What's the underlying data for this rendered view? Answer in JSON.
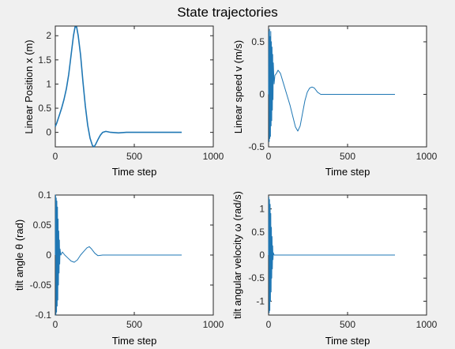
{
  "figure": {
    "title": "State trajectories",
    "background": "#f0f0f0",
    "line_color": "#1f77b4"
  },
  "chart_data": [
    {
      "type": "line",
      "title": "",
      "xlabel": "Time step",
      "ylabel": "Linear Position x (m)",
      "xlim": [
        0,
        1000
      ],
      "ylim": [
        -0.3,
        2.2
      ],
      "xticks": [
        0,
        500,
        1000
      ],
      "xtick_labels": [
        "0",
        "500",
        "1000"
      ],
      "yticks": [
        0,
        0.5,
        1,
        1.5,
        2
      ],
      "ytick_labels": [
        "0",
        "0.5",
        "1",
        "1.5",
        "2"
      ],
      "grid": false,
      "line_width": 1.6,
      "series": [
        {
          "points": [
            [
              0,
              0.12
            ],
            [
              10,
              0.2
            ],
            [
              25,
              0.35
            ],
            [
              40,
              0.5
            ],
            [
              55,
              0.68
            ],
            [
              70,
              0.9
            ],
            [
              85,
              1.2
            ],
            [
              100,
              1.6
            ],
            [
              115,
              2.0
            ],
            [
              125,
              2.18
            ],
            [
              135,
              2.18
            ],
            [
              145,
              2.0
            ],
            [
              160,
              1.6
            ],
            [
              175,
              1.05
            ],
            [
              190,
              0.55
            ],
            [
              205,
              0.15
            ],
            [
              220,
              -0.12
            ],
            [
              235,
              -0.27
            ],
            [
              245,
              -0.3
            ],
            [
              255,
              -0.25
            ],
            [
              270,
              -0.15
            ],
            [
              285,
              -0.06
            ],
            [
              300,
              0.0
            ],
            [
              320,
              0.02
            ],
            [
              350,
              0.0
            ],
            [
              400,
              -0.01
            ],
            [
              450,
              0.0
            ],
            [
              500,
              0.0
            ],
            [
              600,
              0.0
            ],
            [
              700,
              0.0
            ],
            [
              800,
              0.0
            ]
          ]
        }
      ]
    },
    {
      "type": "line",
      "title": "",
      "xlabel": "Time step",
      "ylabel": "Linear speed v (m/s)",
      "xlim": [
        0,
        1000
      ],
      "ylim": [
        -0.5,
        0.65
      ],
      "xticks": [
        0,
        500,
        1000
      ],
      "xtick_labels": [
        "0",
        "500",
        "1000"
      ],
      "yticks": [
        -0.5,
        0,
        0.5
      ],
      "ytick_labels": [
        "-0.5",
        "0",
        "0.5"
      ],
      "grid": false,
      "line_width": 1,
      "series": [
        {
          "points": [
            [
              0,
              0.0
            ],
            [
              2,
              0.6
            ],
            [
              4,
              -0.45
            ],
            [
              6,
              0.62
            ],
            [
              8,
              -0.42
            ],
            [
              10,
              0.55
            ],
            [
              12,
              -0.4
            ],
            [
              14,
              0.6
            ],
            [
              16,
              -0.3
            ],
            [
              18,
              0.5
            ],
            [
              20,
              -0.25
            ],
            [
              22,
              0.45
            ],
            [
              24,
              -0.15
            ],
            [
              26,
              0.38
            ],
            [
              28,
              -0.05
            ],
            [
              30,
              0.3
            ],
            [
              35,
              0.1
            ],
            [
              40,
              0.18
            ],
            [
              50,
              0.2
            ],
            [
              60,
              0.23
            ],
            [
              75,
              0.2
            ],
            [
              95,
              0.1
            ],
            [
              115,
              0.0
            ],
            [
              135,
              -0.1
            ],
            [
              155,
              -0.22
            ],
            [
              170,
              -0.31
            ],
            [
              185,
              -0.35
            ],
            [
              200,
              -0.3
            ],
            [
              215,
              -0.18
            ],
            [
              230,
              -0.06
            ],
            [
              245,
              0.02
            ],
            [
              260,
              0.06
            ],
            [
              275,
              0.07
            ],
            [
              290,
              0.06
            ],
            [
              310,
              0.02
            ],
            [
              330,
              0.0
            ],
            [
              400,
              0.0
            ],
            [
              500,
              0.0
            ],
            [
              600,
              0.0
            ],
            [
              700,
              0.0
            ],
            [
              800,
              0.0
            ]
          ]
        }
      ]
    },
    {
      "type": "line",
      "title": "",
      "xlabel": "Time step",
      "ylabel": "tilt angle θ (rad)",
      "xlim": [
        0,
        1000
      ],
      "ylim": [
        -0.1,
        0.1
      ],
      "xticks": [
        0,
        500,
        1000
      ],
      "xtick_labels": [
        "0",
        "500",
        "1000"
      ],
      "yticks": [
        -0.1,
        -0.05,
        0,
        0.05,
        0.1
      ],
      "ytick_labels": [
        "-0.1",
        "-0.05",
        "0",
        "0.05",
        "0.1"
      ],
      "grid": false,
      "line_width": 1,
      "series": [
        {
          "points": [
            [
              0,
              0.0
            ],
            [
              2,
              0.1
            ],
            [
              4,
              -0.1
            ],
            [
              6,
              0.095
            ],
            [
              8,
              -0.095
            ],
            [
              10,
              0.09
            ],
            [
              12,
              -0.085
            ],
            [
              14,
              0.08
            ],
            [
              16,
              -0.075
            ],
            [
              18,
              0.06
            ],
            [
              20,
              -0.05
            ],
            [
              22,
              0.04
            ],
            [
              24,
              -0.03
            ],
            [
              26,
              0.025
            ],
            [
              28,
              -0.015
            ],
            [
              30,
              0.01
            ],
            [
              35,
              0.0
            ],
            [
              45,
              0.005
            ],
            [
              60,
              0.0
            ],
            [
              80,
              -0.005
            ],
            [
              100,
              -0.01
            ],
            [
              120,
              -0.012
            ],
            [
              140,
              -0.008
            ],
            [
              160,
              0.0
            ],
            [
              180,
              0.006
            ],
            [
              200,
              0.012
            ],
            [
              215,
              0.014
            ],
            [
              230,
              0.01
            ],
            [
              250,
              0.003
            ],
            [
              270,
              -0.001
            ],
            [
              300,
              0.0
            ],
            [
              400,
              0.0
            ],
            [
              500,
              0.0
            ],
            [
              600,
              0.0
            ],
            [
              700,
              0.0
            ],
            [
              800,
              0.0
            ]
          ]
        }
      ]
    },
    {
      "type": "line",
      "title": "",
      "xlabel": "Time step",
      "ylabel": "tilt angular velocity ω (rad/s)",
      "xlim": [
        0,
        1000
      ],
      "ylim": [
        -1.3,
        1.3
      ],
      "xticks": [
        0,
        500,
        1000
      ],
      "xtick_labels": [
        "0",
        "500",
        "1000"
      ],
      "yticks": [
        -1,
        -0.5,
        0,
        0.5,
        1
      ],
      "ytick_labels": [
        "-1",
        "-0.5",
        "0",
        "0.5",
        "1"
      ],
      "grid": false,
      "line_width": 1,
      "series": [
        {
          "points": [
            [
              0,
              0.0
            ],
            [
              2,
              1.25
            ],
            [
              4,
              -1.25
            ],
            [
              6,
              1.2
            ],
            [
              8,
              -1.2
            ],
            [
              10,
              1.1
            ],
            [
              12,
              -1.0
            ],
            [
              14,
              0.9
            ],
            [
              16,
              -0.8
            ],
            [
              18,
              0.6
            ],
            [
              20,
              -0.5
            ],
            [
              22,
              0.4
            ],
            [
              24,
              -0.3
            ],
            [
              26,
              0.2
            ],
            [
              28,
              -0.1
            ],
            [
              30,
              0.05
            ],
            [
              35,
              0.0
            ],
            [
              100,
              0.0
            ],
            [
              200,
              0.0
            ],
            [
              300,
              0.0
            ],
            [
              400,
              0.0
            ],
            [
              500,
              0.0
            ],
            [
              600,
              0.0
            ],
            [
              700,
              0.0
            ],
            [
              800,
              0.0
            ]
          ]
        }
      ]
    }
  ]
}
